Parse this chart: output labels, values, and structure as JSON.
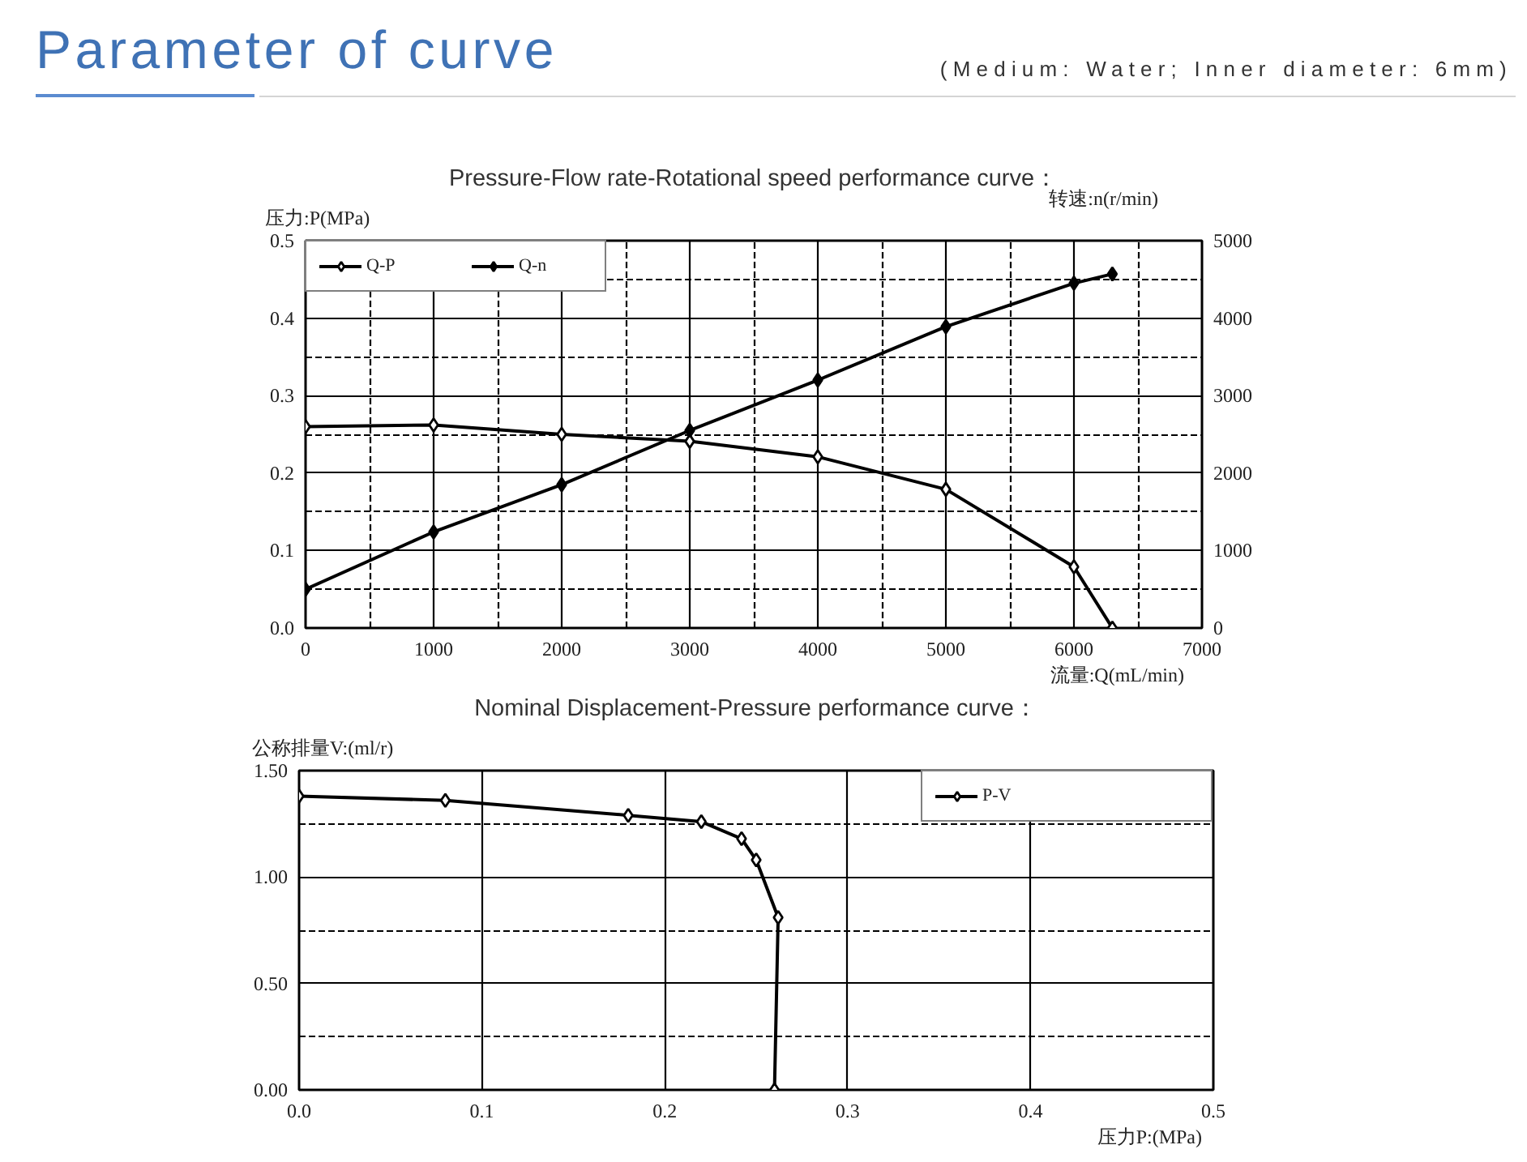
{
  "chart_data": [
    {
      "type": "line",
      "title": "Pressure-Flow rate-Rotational speed performance curve：",
      "xlabel": "流量:Q(mL/min)",
      "ylabel": "压力:P(MPa)",
      "y2label": "转速:n(r/min)",
      "annotations": [
        "Parameter of curve",
        "(Medium: Water; Inner diameter: 6mm)"
      ],
      "x": [
        0,
        1000,
        2000,
        3000,
        4000,
        5000,
        6000,
        6300
      ],
      "series": [
        {
          "name": "Q-P",
          "color": "#000000",
          "values": [
            0.26,
            0.262,
            0.25,
            0.241,
            0.221,
            0.179,
            0.079,
            0
          ]
        },
        {
          "name": "Q-n",
          "color": "#000000",
          "axis": "y2",
          "values": [
            500,
            1240,
            1850,
            2550,
            3200,
            3890,
            4450,
            4570
          ]
        }
      ],
      "xlim": [
        0,
        7000
      ],
      "xticks": [
        0,
        {
          "value": 500,
          "label": null
        },
        1000,
        {
          "value": 1500,
          "label": null
        },
        2000,
        {
          "value": 2500,
          "label": null
        },
        3000,
        {
          "value": 3500,
          "label": null
        },
        4000,
        {
          "value": 4500,
          "label": null
        },
        5000,
        {
          "value": 5500,
          "label": null
        },
        6000,
        {
          "value": 6500,
          "label": null
        },
        7000
      ],
      "ylim": [
        0,
        0.5
      ],
      "yticks": [
        {
          "value": 0,
          "label": "0.0"
        },
        {
          "value": 0.05,
          "label": null
        },
        0.1,
        {
          "value": 0.15,
          "label": null
        },
        0.2,
        {
          "value": 0.25,
          "label": null
        },
        0.3,
        {
          "value": 0.35,
          "label": null
        },
        0.4,
        {
          "value": 0.45,
          "label": null
        },
        0.5
      ],
      "y2lim": [
        0,
        5000
      ],
      "y2ticks": [
        0,
        1000,
        2000,
        3000,
        4000,
        5000
      ],
      "grid": true,
      "legend": "top left",
      "marker": "diamond"
    },
    {
      "type": "line",
      "title": "Nominal Displacement-Pressure performance curve：",
      "xlabel": "压力P:(MPa)",
      "ylabel": "公称排量V:(ml/r)",
      "x": [
        0,
        0.08,
        0.18,
        0.22,
        0.242,
        0.25,
        0.262,
        0.26
      ],
      "series": [
        {
          "name": "P-V",
          "color": "#000000",
          "values": [
            1.38,
            1.36,
            1.29,
            1.26,
            1.18,
            1.08,
            0.81,
            0
          ]
        }
      ],
      "xlim": [
        0,
        0.5
      ],
      "xticks": [
        {
          "value": 0,
          "label": "0.0"
        },
        0.1,
        0.2,
        0.3,
        0.4,
        0.5
      ],
      "ylim": [
        0,
        1.5
      ],
      "yticks": [
        {
          "value": 0,
          "label": "0.00"
        },
        {
          "value": 0.25,
          "label": null
        },
        {
          "value": 0.5,
          "label": "0.50"
        },
        {
          "value": 0.75,
          "label": null
        },
        {
          "value": 1,
          "label": "1.00"
        },
        {
          "value": 1.25,
          "label": null
        },
        {
          "value": 1.5,
          "label": "1.50"
        }
      ],
      "grid": true,
      "legend": "top right",
      "marker": "diamond"
    }
  ]
}
